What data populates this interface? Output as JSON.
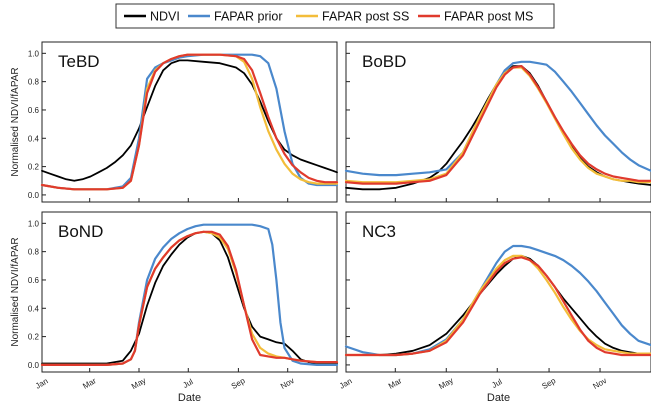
{
  "legend": {
    "ndvi": "NDVI",
    "prior": "FAPAR prior",
    "post_ss": "FAPAR post SS",
    "post_ms": "FAPAR post MS"
  },
  "colors": {
    "ndvi": "#000000",
    "prior": "#4a88cc",
    "post_ss": "#f3bd3a",
    "post_ms": "#e03a2d"
  },
  "chart_data": [
    {
      "type": "line",
      "title": "TeBD",
      "xlabel": "Date",
      "ylabel": "Normalised NDVI/fAPAR",
      "xlim": [
        0,
        365
      ],
      "ylim": [
        -0.05,
        1.08
      ],
      "yticks": [
        "0.0",
        "0.2",
        "0.4",
        "0.6",
        "0.8",
        "1.0"
      ],
      "xticks": [
        "Jan",
        "Mar",
        "May",
        "Jul",
        "Sep",
        "Nov"
      ],
      "series": [
        {
          "name": "NDVI",
          "x": [
            0,
            10,
            20,
            30,
            40,
            50,
            60,
            70,
            80,
            90,
            100,
            110,
            120,
            130,
            140,
            150,
            160,
            170,
            180,
            200,
            220,
            240,
            250,
            260,
            270,
            280,
            290,
            300,
            310,
            320,
            330,
            340,
            350,
            360,
            365
          ],
          "y": [
            0.17,
            0.15,
            0.13,
            0.11,
            0.1,
            0.11,
            0.13,
            0.16,
            0.19,
            0.23,
            0.28,
            0.35,
            0.47,
            0.62,
            0.77,
            0.88,
            0.93,
            0.95,
            0.95,
            0.94,
            0.93,
            0.9,
            0.86,
            0.78,
            0.66,
            0.52,
            0.4,
            0.32,
            0.28,
            0.25,
            0.23,
            0.21,
            0.19,
            0.17,
            0.16
          ]
        },
        {
          "name": "FAPAR prior",
          "x": [
            0,
            20,
            40,
            60,
            80,
            100,
            110,
            120,
            130,
            140,
            150,
            160,
            170,
            180,
            200,
            220,
            240,
            260,
            270,
            280,
            290,
            300,
            310,
            320,
            330,
            340,
            350,
            365
          ],
          "y": [
            0.07,
            0.05,
            0.04,
            0.04,
            0.04,
            0.06,
            0.12,
            0.4,
            0.82,
            0.9,
            0.93,
            0.95,
            0.97,
            0.98,
            0.99,
            0.99,
            0.99,
            0.99,
            0.98,
            0.93,
            0.75,
            0.45,
            0.22,
            0.12,
            0.08,
            0.07,
            0.07,
            0.07
          ]
        },
        {
          "name": "FAPAR post SS",
          "x": [
            0,
            20,
            40,
            60,
            80,
            100,
            110,
            120,
            130,
            140,
            150,
            160,
            170,
            180,
            200,
            220,
            240,
            250,
            260,
            270,
            280,
            290,
            300,
            310,
            320,
            330,
            340,
            350,
            365
          ],
          "y": [
            0.07,
            0.05,
            0.04,
            0.04,
            0.04,
            0.05,
            0.1,
            0.35,
            0.75,
            0.88,
            0.93,
            0.96,
            0.98,
            0.99,
            0.99,
            0.99,
            0.98,
            0.94,
            0.82,
            0.62,
            0.45,
            0.32,
            0.22,
            0.15,
            0.11,
            0.09,
            0.08,
            0.08,
            0.08
          ]
        },
        {
          "name": "FAPAR post MS",
          "x": [
            0,
            20,
            40,
            60,
            80,
            100,
            110,
            120,
            130,
            140,
            150,
            160,
            170,
            180,
            200,
            220,
            240,
            250,
            260,
            270,
            280,
            290,
            300,
            310,
            320,
            330,
            340,
            350,
            365
          ],
          "y": [
            0.07,
            0.05,
            0.04,
            0.04,
            0.04,
            0.05,
            0.1,
            0.35,
            0.72,
            0.87,
            0.93,
            0.96,
            0.98,
            0.99,
            0.99,
            0.99,
            0.98,
            0.96,
            0.88,
            0.72,
            0.55,
            0.4,
            0.29,
            0.21,
            0.16,
            0.12,
            0.1,
            0.09,
            0.09
          ]
        }
      ]
    },
    {
      "type": "line",
      "title": "BoBD",
      "xlabel": "Date",
      "ylabel": "",
      "xlim": [
        0,
        365
      ],
      "ylim": [
        -0.05,
        1.08
      ],
      "xticks": [
        "Jan",
        "Mar",
        "May",
        "Jul",
        "Sep",
        "Nov"
      ],
      "series": [
        {
          "name": "NDVI",
          "x": [
            0,
            20,
            40,
            60,
            80,
            100,
            110,
            120,
            130,
            140,
            150,
            160,
            170,
            180,
            190,
            200,
            210,
            220,
            230,
            240,
            250,
            260,
            270,
            280,
            290,
            300,
            310,
            320,
            330,
            340,
            350,
            365
          ],
          "y": [
            0.05,
            0.04,
            0.04,
            0.05,
            0.08,
            0.12,
            0.16,
            0.22,
            0.3,
            0.38,
            0.47,
            0.57,
            0.68,
            0.78,
            0.86,
            0.91,
            0.91,
            0.86,
            0.77,
            0.66,
            0.55,
            0.44,
            0.34,
            0.26,
            0.2,
            0.16,
            0.13,
            0.11,
            0.1,
            0.09,
            0.08,
            0.07
          ]
        },
        {
          "name": "FAPAR prior",
          "x": [
            0,
            20,
            40,
            60,
            80,
            100,
            120,
            140,
            160,
            180,
            190,
            200,
            210,
            220,
            230,
            240,
            250,
            260,
            270,
            280,
            290,
            300,
            310,
            320,
            330,
            340,
            350,
            365
          ],
          "y": [
            0.17,
            0.15,
            0.14,
            0.14,
            0.15,
            0.16,
            0.18,
            0.3,
            0.55,
            0.78,
            0.88,
            0.93,
            0.94,
            0.94,
            0.93,
            0.92,
            0.87,
            0.8,
            0.73,
            0.65,
            0.57,
            0.49,
            0.42,
            0.36,
            0.3,
            0.25,
            0.21,
            0.17
          ]
        },
        {
          "name": "FAPAR post SS",
          "x": [
            0,
            20,
            40,
            60,
            80,
            100,
            120,
            140,
            160,
            180,
            190,
            200,
            210,
            220,
            230,
            240,
            250,
            260,
            270,
            280,
            290,
            300,
            310,
            320,
            330,
            340,
            350,
            365
          ],
          "y": [
            0.1,
            0.09,
            0.09,
            0.09,
            0.1,
            0.11,
            0.15,
            0.3,
            0.55,
            0.78,
            0.86,
            0.9,
            0.9,
            0.84,
            0.75,
            0.65,
            0.54,
            0.43,
            0.33,
            0.25,
            0.19,
            0.15,
            0.13,
            0.11,
            0.1,
            0.1,
            0.09,
            0.09
          ]
        },
        {
          "name": "FAPAR post MS",
          "x": [
            0,
            20,
            40,
            60,
            80,
            100,
            120,
            140,
            160,
            180,
            190,
            200,
            210,
            220,
            230,
            240,
            250,
            260,
            270,
            280,
            290,
            300,
            310,
            320,
            330,
            340,
            350,
            365
          ],
          "y": [
            0.09,
            0.08,
            0.08,
            0.08,
            0.09,
            0.1,
            0.14,
            0.28,
            0.52,
            0.76,
            0.85,
            0.9,
            0.91,
            0.85,
            0.76,
            0.66,
            0.55,
            0.45,
            0.36,
            0.28,
            0.22,
            0.18,
            0.15,
            0.13,
            0.12,
            0.11,
            0.1,
            0.1
          ]
        }
      ]
    },
    {
      "type": "line",
      "title": "BoND",
      "xlabel": "Date",
      "ylabel": "Normalised NDVI/fAPAR",
      "xlim": [
        0,
        365
      ],
      "ylim": [
        -0.05,
        1.08
      ],
      "yticks": [
        "0.0",
        "0.2",
        "0.4",
        "0.6",
        "0.8",
        "1.0"
      ],
      "xticks": [
        "Jan",
        "Mar",
        "May",
        "Jul",
        "Sep",
        "Nov"
      ],
      "series": [
        {
          "name": "NDVI",
          "x": [
            0,
            40,
            80,
            100,
            110,
            120,
            130,
            140,
            150,
            160,
            170,
            180,
            190,
            200,
            210,
            220,
            230,
            240,
            250,
            260,
            270,
            280,
            290,
            300,
            310,
            320,
            330,
            340,
            365
          ],
          "y": [
            0.01,
            0.01,
            0.01,
            0.03,
            0.1,
            0.22,
            0.42,
            0.58,
            0.7,
            0.78,
            0.85,
            0.9,
            0.93,
            0.94,
            0.93,
            0.88,
            0.76,
            0.58,
            0.4,
            0.27,
            0.2,
            0.18,
            0.16,
            0.15,
            0.1,
            0.04,
            0.02,
            0.01,
            0.01
          ]
        },
        {
          "name": "FAPAR prior",
          "x": [
            0,
            40,
            80,
            100,
            110,
            115,
            120,
            130,
            140,
            150,
            160,
            170,
            180,
            190,
            200,
            220,
            240,
            260,
            270,
            280,
            285,
            290,
            295,
            300,
            310,
            320,
            340,
            365
          ],
          "y": [
            0.0,
            0.0,
            0.0,
            0.01,
            0.04,
            0.1,
            0.3,
            0.6,
            0.75,
            0.83,
            0.89,
            0.93,
            0.96,
            0.98,
            0.99,
            0.99,
            0.99,
            0.99,
            0.98,
            0.96,
            0.85,
            0.6,
            0.3,
            0.12,
            0.03,
            0.01,
            0.0,
            0.0
          ]
        },
        {
          "name": "FAPAR post SS",
          "x": [
            0,
            40,
            80,
            100,
            110,
            115,
            120,
            130,
            140,
            150,
            160,
            170,
            180,
            190,
            200,
            210,
            220,
            230,
            240,
            250,
            260,
            270,
            280,
            290,
            300,
            310,
            320,
            340,
            365
          ],
          "y": [
            0.0,
            0.0,
            0.0,
            0.01,
            0.04,
            0.1,
            0.28,
            0.55,
            0.68,
            0.76,
            0.83,
            0.88,
            0.91,
            0.93,
            0.94,
            0.93,
            0.9,
            0.82,
            0.65,
            0.42,
            0.22,
            0.12,
            0.08,
            0.06,
            0.05,
            0.04,
            0.03,
            0.02,
            0.02
          ]
        },
        {
          "name": "FAPAR post MS",
          "x": [
            0,
            40,
            80,
            100,
            110,
            115,
            120,
            130,
            140,
            150,
            160,
            170,
            180,
            190,
            200,
            210,
            220,
            230,
            240,
            250,
            260,
            270,
            280,
            290,
            300,
            310,
            320,
            340,
            365
          ],
          "y": [
            0.0,
            0.0,
            0.0,
            0.01,
            0.04,
            0.1,
            0.28,
            0.55,
            0.68,
            0.76,
            0.83,
            0.88,
            0.91,
            0.93,
            0.94,
            0.94,
            0.92,
            0.84,
            0.67,
            0.42,
            0.18,
            0.07,
            0.06,
            0.05,
            0.05,
            0.04,
            0.03,
            0.02,
            0.02
          ]
        }
      ]
    },
    {
      "type": "line",
      "title": "NC3",
      "xlabel": "Date",
      "ylabel": "",
      "xlim": [
        0,
        365
      ],
      "ylim": [
        -0.05,
        1.08
      ],
      "xticks": [
        "Jan",
        "Mar",
        "May",
        "Jul",
        "Sep",
        "Nov"
      ],
      "series": [
        {
          "name": "NDVI",
          "x": [
            0,
            20,
            40,
            60,
            80,
            100,
            120,
            140,
            160,
            180,
            190,
            200,
            210,
            220,
            230,
            240,
            250,
            260,
            270,
            280,
            290,
            300,
            310,
            320,
            330,
            340,
            350,
            365
          ],
          "y": [
            0.07,
            0.07,
            0.07,
            0.08,
            0.1,
            0.14,
            0.22,
            0.35,
            0.5,
            0.64,
            0.7,
            0.75,
            0.77,
            0.75,
            0.7,
            0.63,
            0.55,
            0.47,
            0.4,
            0.33,
            0.26,
            0.2,
            0.15,
            0.12,
            0.1,
            0.09,
            0.08,
            0.08
          ]
        },
        {
          "name": "FAPAR prior",
          "x": [
            0,
            20,
            40,
            60,
            80,
            100,
            120,
            140,
            160,
            180,
            190,
            200,
            210,
            220,
            230,
            240,
            250,
            260,
            270,
            280,
            290,
            300,
            310,
            320,
            330,
            340,
            350,
            365
          ],
          "y": [
            0.13,
            0.09,
            0.07,
            0.07,
            0.08,
            0.11,
            0.18,
            0.32,
            0.52,
            0.72,
            0.8,
            0.84,
            0.84,
            0.83,
            0.81,
            0.79,
            0.77,
            0.74,
            0.7,
            0.65,
            0.59,
            0.52,
            0.44,
            0.36,
            0.28,
            0.22,
            0.17,
            0.14
          ]
        },
        {
          "name": "FAPAR post SS",
          "x": [
            0,
            20,
            40,
            60,
            80,
            100,
            120,
            140,
            160,
            180,
            190,
            200,
            210,
            220,
            230,
            240,
            250,
            260,
            270,
            280,
            290,
            300,
            310,
            320,
            330,
            340,
            350,
            365
          ],
          "y": [
            0.07,
            0.07,
            0.07,
            0.07,
            0.08,
            0.1,
            0.17,
            0.32,
            0.52,
            0.68,
            0.74,
            0.77,
            0.77,
            0.74,
            0.68,
            0.6,
            0.51,
            0.41,
            0.32,
            0.24,
            0.18,
            0.14,
            0.11,
            0.1,
            0.09,
            0.08,
            0.08,
            0.08
          ]
        },
        {
          "name": "FAPAR post MS",
          "x": [
            0,
            20,
            40,
            60,
            80,
            100,
            120,
            140,
            160,
            180,
            190,
            200,
            210,
            220,
            230,
            240,
            250,
            260,
            270,
            280,
            290,
            300,
            310,
            320,
            330,
            340,
            350,
            365
          ],
          "y": [
            0.07,
            0.07,
            0.07,
            0.07,
            0.08,
            0.1,
            0.16,
            0.3,
            0.5,
            0.66,
            0.72,
            0.75,
            0.76,
            0.74,
            0.7,
            0.63,
            0.55,
            0.45,
            0.35,
            0.25,
            0.17,
            0.12,
            0.09,
            0.08,
            0.07,
            0.07,
            0.07,
            0.07
          ]
        }
      ]
    }
  ]
}
